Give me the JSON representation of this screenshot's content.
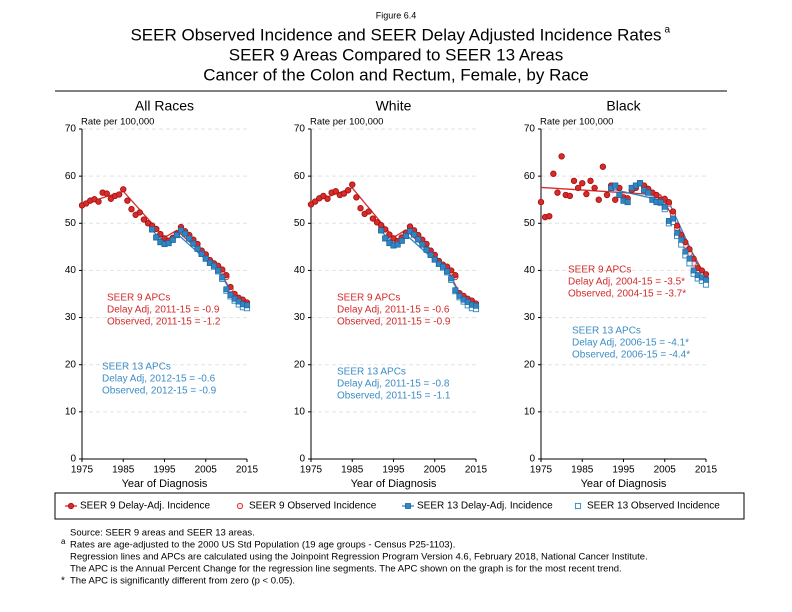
{
  "figure_label": "Figure 6.4",
  "title": "SEER Observed Incidence and SEER Delay Adjusted Incidence Rates",
  "title_note": "a",
  "subtitle": [
    "SEER 9 Areas Compared to SEER 13 Areas",
    "Cancer of the Colon and Rectum, Female, by Race"
  ],
  "chart_data": [
    {
      "type": "scatter",
      "title": "All Races",
      "y_label": "Rate per 100,000",
      "x_label": "Year of Diagnosis",
      "xlim": [
        1975,
        2015
      ],
      "xticks": [
        1975,
        1985,
        1995,
        2005,
        2015
      ],
      "ylim": [
        0,
        70
      ],
      "yticks": [
        0,
        10,
        20,
        30,
        40,
        50,
        60,
        70
      ],
      "grid": true,
      "x": [
        1975,
        1976,
        1977,
        1978,
        1979,
        1980,
        1981,
        1982,
        1983,
        1984,
        1985,
        1986,
        1987,
        1988,
        1989,
        1990,
        1991,
        1992,
        1993,
        1994,
        1995,
        1996,
        1997,
        1998,
        1999,
        2000,
        2001,
        2002,
        2003,
        2004,
        2005,
        2006,
        2007,
        2008,
        2009,
        2010,
        2011,
        2012,
        2013,
        2014,
        2015
      ],
      "series": [
        {
          "name": "SEER 9 Delay-Adj. Incidence",
          "color": "#d92b2b",
          "marker": "dot",
          "values": [
            53.8,
            54.2,
            54.8,
            55.1,
            54.6,
            56.5,
            56.3,
            55.2,
            55.8,
            56.1,
            57.2,
            54.8,
            53.0,
            51.8,
            52.3,
            50.8,
            50.0,
            49.5,
            48.8,
            47.7,
            46.8,
            46.3,
            46.9,
            47.8,
            49.2,
            48.3,
            47.5,
            46.5,
            45.6,
            44.2,
            43.4,
            42.2,
            41.5,
            41.0,
            40.2,
            39.0,
            36.5,
            35.0,
            34.2,
            33.8,
            33.2
          ]
        },
        {
          "name": "SEER 9 Observed Incidence",
          "color": "#d92b2b",
          "marker": "circle-open",
          "values": [
            53.8,
            54.2,
            54.8,
            55.1,
            54.6,
            56.5,
            56.3,
            55.2,
            55.8,
            56.1,
            57.2,
            54.8,
            53.0,
            51.8,
            52.3,
            50.8,
            50.0,
            49.5,
            48.8,
            47.7,
            46.8,
            46.3,
            46.9,
            47.8,
            49.2,
            48.3,
            47.5,
            46.5,
            45.6,
            44.2,
            43.4,
            42.2,
            41.5,
            40.8,
            39.8,
            38.6,
            36.0,
            34.4,
            33.5,
            32.8,
            32.2
          ]
        },
        {
          "name": "SEER 13 Delay-Adj. Incidence",
          "color": "#2f86c4",
          "marker": "square",
          "x": [
            1992,
            1993,
            1994,
            1995,
            1996,
            1997,
            1998,
            1999,
            2000,
            2001,
            2002,
            2003,
            2004,
            2005,
            2006,
            2007,
            2008,
            2009,
            2010,
            2011,
            2012,
            2013,
            2014,
            2015
          ],
          "values": [
            48.7,
            47.0,
            46.0,
            45.6,
            45.8,
            46.5,
            47.5,
            48.5,
            47.8,
            46.8,
            45.7,
            44.6,
            43.5,
            42.5,
            41.6,
            41.0,
            40.0,
            38.5,
            36.0,
            34.8,
            34.0,
            33.4,
            32.8,
            32.6
          ]
        },
        {
          "name": "SEER 13 Observed Incidence",
          "color": "#2f86c4",
          "marker": "square-open",
          "x": [
            1992,
            1993,
            1994,
            1995,
            1996,
            1997,
            1998,
            1999,
            2000,
            2001,
            2002,
            2003,
            2004,
            2005,
            2006,
            2007,
            2008,
            2009,
            2010,
            2011,
            2012,
            2013,
            2014,
            2015
          ],
          "values": [
            48.7,
            47.0,
            46.0,
            45.6,
            45.8,
            46.5,
            47.5,
            48.5,
            47.8,
            46.8,
            45.7,
            44.6,
            43.5,
            42.5,
            41.6,
            40.8,
            39.8,
            38.2,
            35.7,
            34.5,
            33.6,
            32.8,
            32.2,
            32.0
          ]
        },
        {
          "color": "#d92b2b",
          "marker": "line",
          "x": [
            1975,
            1985,
            1995,
            1998,
            2008,
            2011,
            2015
          ],
          "values": [
            54.0,
            56.8,
            47.0,
            48.5,
            40.5,
            35.8,
            33.0
          ]
        },
        {
          "color": "#2f86c4",
          "marker": "line",
          "x": [
            1992,
            1995,
            1998,
            2008,
            2012,
            2015
          ],
          "values": [
            48.5,
            46.0,
            47.8,
            40.0,
            34.3,
            33.3
          ]
        }
      ],
      "apc": [
        [
          "SEER 9 APCs",
          "Delay Adj, 2011-15 = -0.9",
          "Observed, 2011-15 = -1.2"
        ],
        [
          "SEER 13 APCs",
          "Delay Adj, 2012-15 = -0.6",
          "Observed, 2012-15 = -0.9"
        ]
      ]
    },
    {
      "type": "scatter",
      "title": "White",
      "y_label": "Rate per 100,000",
      "x_label": "Year of Diagnosis",
      "xlim": [
        1975,
        2015
      ],
      "xticks": [
        1975,
        1985,
        1995,
        2005,
        2015
      ],
      "ylim": [
        0,
        70
      ],
      "yticks": [
        0,
        10,
        20,
        30,
        40,
        50,
        60,
        70
      ],
      "grid": true,
      "x": [
        1975,
        1976,
        1977,
        1978,
        1979,
        1980,
        1981,
        1982,
        1983,
        1984,
        1985,
        1986,
        1987,
        1988,
        1989,
        1990,
        1991,
        1992,
        1993,
        1994,
        1995,
        1996,
        1997,
        1998,
        1999,
        2000,
        2001,
        2002,
        2003,
        2004,
        2005,
        2006,
        2007,
        2008,
        2009,
        2010,
        2011,
        2012,
        2013,
        2014,
        2015
      ],
      "series": [
        {
          "name": "SEER 9 Delay-Adj. Incidence",
          "color": "#d92b2b",
          "marker": "dot",
          "values": [
            54.0,
            54.6,
            55.3,
            55.8,
            55.2,
            56.5,
            56.8,
            56.0,
            56.3,
            57.0,
            58.2,
            55.5,
            53.2,
            52.0,
            52.5,
            51.0,
            50.2,
            49.6,
            48.7,
            47.6,
            46.8,
            46.2,
            47.0,
            48.0,
            49.3,
            48.5,
            47.5,
            46.5,
            45.6,
            44.2,
            43.3,
            42.0,
            41.2,
            40.8,
            40.0,
            39.0,
            35.2,
            34.6,
            34.0,
            33.6,
            33.0
          ]
        },
        {
          "name": "SEER 9 Observed Incidence",
          "color": "#d92b2b",
          "marker": "circle-open",
          "values": [
            54.0,
            54.6,
            55.3,
            55.8,
            55.2,
            56.5,
            56.8,
            56.0,
            56.3,
            57.0,
            58.2,
            55.5,
            53.2,
            52.0,
            52.5,
            51.0,
            50.2,
            49.6,
            48.7,
            47.6,
            46.8,
            46.2,
            47.0,
            48.0,
            49.3,
            48.5,
            47.5,
            46.5,
            45.6,
            44.2,
            43.3,
            42.0,
            41.2,
            40.6,
            39.6,
            38.6,
            34.9,
            34.2,
            33.5,
            32.9,
            32.3
          ]
        },
        {
          "name": "SEER 13 Delay-Adj. Incidence",
          "color": "#2f86c4",
          "marker": "square",
          "x": [
            1992,
            1993,
            1994,
            1995,
            1996,
            1997,
            1998,
            1999,
            2000,
            2001,
            2002,
            2003,
            2004,
            2005,
            2006,
            2007,
            2008,
            2009,
            2010,
            2011,
            2012,
            2013,
            2014,
            2015
          ],
          "values": [
            48.5,
            46.8,
            45.8,
            45.3,
            45.5,
            46.3,
            47.3,
            48.3,
            47.6,
            46.6,
            45.5,
            44.4,
            43.3,
            42.3,
            41.4,
            40.8,
            39.8,
            38.3,
            35.8,
            34.6,
            33.8,
            33.3,
            32.7,
            32.5
          ]
        },
        {
          "name": "SEER 13 Observed Incidence",
          "color": "#2f86c4",
          "marker": "square-open",
          "x": [
            1992,
            1993,
            1994,
            1995,
            1996,
            1997,
            1998,
            1999,
            2000,
            2001,
            2002,
            2003,
            2004,
            2005,
            2006,
            2007,
            2008,
            2009,
            2010,
            2011,
            2012,
            2013,
            2014,
            2015
          ],
          "values": [
            48.5,
            46.8,
            45.8,
            45.3,
            45.5,
            46.3,
            47.3,
            48.3,
            47.6,
            46.6,
            45.5,
            44.4,
            43.3,
            42.3,
            41.4,
            40.6,
            39.6,
            38.0,
            35.6,
            34.3,
            33.4,
            32.6,
            32.0,
            31.8
          ]
        },
        {
          "color": "#d92b2b",
          "marker": "line",
          "x": [
            1975,
            1985,
            1995,
            1998,
            2008,
            2011,
            2015
          ],
          "values": [
            54.3,
            57.5,
            47.0,
            48.6,
            40.3,
            35.2,
            33.2
          ]
        },
        {
          "color": "#2f86c4",
          "marker": "line",
          "x": [
            1992,
            1995,
            1998,
            2008,
            2011,
            2015
          ],
          "values": [
            48.3,
            45.8,
            47.6,
            39.8,
            35.0,
            33.0
          ]
        }
      ],
      "apc": [
        [
          "SEER 9 APCs",
          "Delay Adj, 2011-15 = -0.6",
          "Observed, 2011-15 = -0.9"
        ],
        [
          "SEER 13 APCs",
          "Delay Adj, 2011-15 = -0.8",
          "Observed, 2011-15 = -1.1"
        ]
      ]
    },
    {
      "type": "scatter",
      "title": "Black",
      "y_label": "Rate per 100,000",
      "x_label": "Year of Diagnosis",
      "xlim": [
        1975,
        2015
      ],
      "xticks": [
        1975,
        1985,
        1995,
        2005,
        2015
      ],
      "ylim": [
        0,
        70
      ],
      "yticks": [
        0,
        10,
        20,
        30,
        40,
        50,
        60,
        70
      ],
      "grid": true,
      "x": [
        1975,
        1976,
        1977,
        1978,
        1979,
        1980,
        1981,
        1982,
        1983,
        1984,
        1985,
        1986,
        1987,
        1988,
        1989,
        1990,
        1991,
        1992,
        1993,
        1994,
        1995,
        1996,
        1997,
        1998,
        1999,
        2000,
        2001,
        2002,
        2003,
        2004,
        2005,
        2006,
        2007,
        2008,
        2009,
        2010,
        2011,
        2012,
        2013,
        2014,
        2015
      ],
      "series": [
        {
          "name": "SEER 9 Delay-Adj. Incidence",
          "color": "#d92b2b",
          "marker": "dot",
          "values": [
            54.5,
            51.3,
            51.5,
            60.5,
            56.5,
            64.2,
            56.0,
            55.8,
            59.0,
            57.5,
            58.5,
            56.2,
            59.0,
            57.5,
            55.0,
            62.0,
            56.0,
            58.0,
            55.0,
            57.5,
            55.5,
            55.3,
            57.0,
            57.5,
            58.5,
            58.0,
            57.3,
            56.5,
            56.0,
            55.0,
            55.2,
            54.5,
            52.5,
            49.5,
            47.5,
            46.0,
            44.5,
            42.5,
            40.5,
            40.0,
            39.2
          ]
        },
        {
          "name": "SEER 9 Observed Incidence",
          "color": "#d92b2b",
          "marker": "circle-open",
          "values": [
            54.5,
            51.3,
            51.5,
            60.5,
            56.5,
            64.2,
            56.0,
            55.8,
            59.0,
            57.5,
            58.5,
            56.2,
            59.0,
            57.5,
            55.0,
            62.0,
            56.0,
            58.0,
            55.0,
            57.5,
            55.5,
            55.3,
            57.0,
            57.5,
            58.5,
            58.0,
            57.3,
            56.5,
            56.0,
            55.0,
            55.0,
            54.2,
            52.0,
            49.0,
            47.0,
            45.3,
            43.6,
            41.5,
            39.6,
            39.0,
            38.3
          ]
        },
        {
          "name": "SEER 13 Delay-Adj. Incidence",
          "color": "#2f86c4",
          "marker": "square",
          "x": [
            1992,
            1993,
            1994,
            1995,
            1996,
            1997,
            1998,
            1999,
            2000,
            2001,
            2002,
            2003,
            2004,
            2005,
            2006,
            2007,
            2008,
            2009,
            2010,
            2011,
            2012,
            2013,
            2014,
            2015
          ],
          "values": [
            57.5,
            58.0,
            56.0,
            54.8,
            54.5,
            57.5,
            58.0,
            58.5,
            57.0,
            56.5,
            55.0,
            54.5,
            54.5,
            53.5,
            50.5,
            51.0,
            48.0,
            46.5,
            44.0,
            42.5,
            40.0,
            39.0,
            38.5,
            38.0
          ]
        },
        {
          "name": "SEER 13 Observed Incidence",
          "color": "#2f86c4",
          "marker": "square-open",
          "x": [
            1992,
            1993,
            1994,
            1995,
            1996,
            1997,
            1998,
            1999,
            2000,
            2001,
            2002,
            2003,
            2004,
            2005,
            2006,
            2007,
            2008,
            2009,
            2010,
            2011,
            2012,
            2013,
            2014,
            2015
          ],
          "values": [
            57.5,
            58.0,
            56.0,
            54.8,
            54.5,
            57.5,
            58.0,
            58.5,
            57.0,
            56.5,
            55.0,
            54.5,
            54.3,
            53.0,
            50.0,
            50.3,
            47.3,
            45.5,
            43.2,
            41.5,
            39.3,
            38.3,
            37.8,
            37.0
          ]
        },
        {
          "color": "#d92b2b",
          "marker": "line",
          "x": [
            1975,
            2004,
            2015
          ],
          "values": [
            57.6,
            56.0,
            38.5
          ]
        },
        {
          "color": "#2f86c4",
          "marker": "line",
          "x": [
            1992,
            2006,
            2015
          ],
          "values": [
            57.3,
            54.5,
            37.5
          ]
        }
      ],
      "apc": [
        [
          "SEER 9 APCs",
          "Delay Adj, 2004-15 = -3.5*",
          "Observed, 2004-15 = -3.7*"
        ],
        [
          "SEER 13 APCs",
          "Delay Adj, 2006-15 = -4.1*",
          "Observed, 2006-15 = -4.4*"
        ]
      ]
    }
  ],
  "notes": [
    {
      "text": "Source: SEER 9 areas and SEER 13 areas."
    },
    {
      "marker": "a",
      "text": "Rates are age-adjusted to the 2000 US Std Population (19 age groups - Census P25-1103)."
    },
    {
      "text": "Regression lines and APCs are calculated using the Joinpoint Regression Program Version 4.6, February 2018, National Cancer Institute."
    },
    {
      "text": "The APC is the Annual Percent Change for the regression line segments. The APC shown on the graph is for the most recent trend."
    },
    {
      "marker": "*",
      "text": "The APC is significantly different from zero (p < 0.05)."
    }
  ]
}
